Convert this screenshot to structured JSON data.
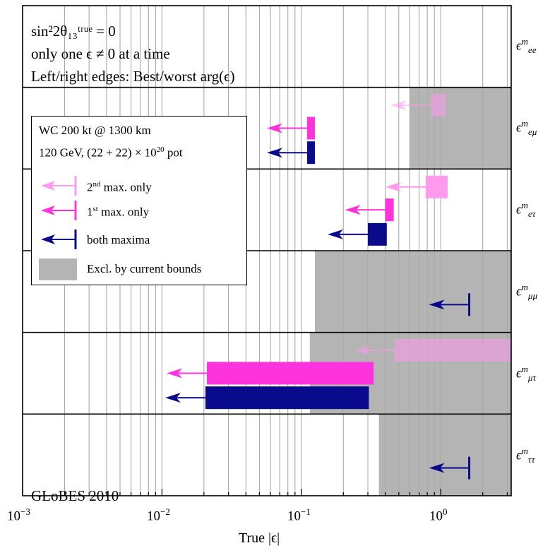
{
  "chart_data": {
    "type": "bar",
    "xscale": "log",
    "xlim": [
      0.001,
      3.2
    ],
    "xlabel": "True |ϵ|",
    "xticks": [
      {
        "value": 0.001,
        "base": "10",
        "exp": "−3"
      },
      {
        "value": 0.01,
        "base": "10",
        "exp": "−2"
      },
      {
        "value": 0.1,
        "base": "10",
        "exp": "−1"
      },
      {
        "value": 1,
        "base": "10",
        "exp": "0"
      }
    ],
    "grid": true,
    "annotations": {
      "line1": "sin²2θ₁₃ᵗʳᵘᵉ = 0",
      "line2": "only one ϵ ≠ 0 at a time",
      "line3": "Left/right edges: Best/worst arg(ϵ)",
      "corner": "GLoBES 2010"
    },
    "legend": {
      "position": "upper-left",
      "title1": "WC 200 kt @ 1300 km",
      "title2_pre": "120 GeV, (22 + 22) × 10",
      "title2_exp": "20",
      "title2_post": " pot",
      "entries": [
        {
          "key": "second",
          "pre": "2",
          "sup": "nd",
          "post": " max. only",
          "color": "#ff99ee"
        },
        {
          "key": "first",
          "pre": "1",
          "sup": "st",
          "post": " max. only",
          "color": "#ff33dd"
        },
        {
          "key": "both",
          "pre": "both maxima",
          "sup": "",
          "post": "",
          "color": "#0a0a8c"
        },
        {
          "key": "excl",
          "pre": "Excl. by current bounds",
          "sup": "",
          "post": "",
          "color": "#b4b4b4"
        }
      ]
    },
    "colors": {
      "second": "#ff99ee",
      "first": "#ff33dd",
      "both": "#0a0a8c",
      "excl": "#b4b4b4"
    },
    "panels": [
      {
        "label_base": "ϵ",
        "label_sup": "m",
        "label_sub": "ee",
        "excluded_from": null,
        "bars": []
      },
      {
        "label_base": "ϵ",
        "label_sup": "m",
        "label_sub": "eμ",
        "excluded_from": 0.6,
        "bars": [
          {
            "series": "second",
            "left": 0.85,
            "right": 1.08
          },
          {
            "series": "first",
            "left": 0.11,
            "right": 0.125
          },
          {
            "series": "both",
            "left": 0.11,
            "right": 0.125
          }
        ]
      },
      {
        "label_base": "ϵ",
        "label_sup": "m",
        "label_sub": "eτ",
        "excluded_from": null,
        "bars": [
          {
            "series": "second",
            "left": 0.78,
            "right": 1.12
          },
          {
            "series": "first",
            "left": 0.4,
            "right": 0.46
          },
          {
            "series": "both",
            "left": 0.3,
            "right": 0.41
          }
        ]
      },
      {
        "label_base": "ϵ",
        "label_sup": "m",
        "label_sub": "μμ",
        "excluded_from": 0.125,
        "bars": [
          {
            "series": "both",
            "left": 1.6,
            "right": 1.6
          }
        ]
      },
      {
        "label_base": "ϵ",
        "label_sup": "m",
        "label_sub": "μτ",
        "excluded_from": 0.115,
        "bars": [
          {
            "series": "second",
            "left": 0.47,
            "right": 3.2
          },
          {
            "series": "first",
            "left": 0.021,
            "right": 0.33
          },
          {
            "series": "both",
            "left": 0.0205,
            "right": 0.305
          }
        ]
      },
      {
        "label_base": "ϵ",
        "label_sup": "m",
        "label_sub": "ττ",
        "excluded_from": 0.36,
        "bars": [
          {
            "series": "both",
            "left": 1.6,
            "right": 1.6
          }
        ]
      }
    ]
  }
}
